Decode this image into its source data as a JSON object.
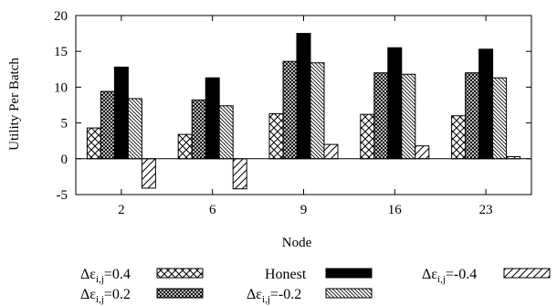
{
  "chart_data": {
    "type": "bar",
    "title": "",
    "xlabel": "Node",
    "ylabel": "Utility Per Batch",
    "ylim": [
      -5,
      20
    ],
    "yticks": [
      -5,
      0,
      5,
      10,
      15,
      20
    ],
    "grid": false,
    "legend_placement": "bottom",
    "categories": [
      "2",
      "6",
      "9",
      "16",
      "23"
    ],
    "series": [
      {
        "name": "Δε",
        "name_sub": "i,j",
        "name_tail": "=0.4",
        "pattern": "crosshatch-wide",
        "values": [
          4.3,
          3.4,
          6.3,
          6.2,
          6.0
        ]
      },
      {
        "name": "Δε",
        "name_sub": "i,j",
        "name_tail": "=0.2",
        "pattern": "crosshatch-dense",
        "values": [
          9.4,
          8.2,
          13.6,
          12.0,
          12.0
        ]
      },
      {
        "name": "Honest",
        "name_sub": "",
        "name_tail": "",
        "pattern": "solid-black",
        "values": [
          12.8,
          11.3,
          17.5,
          15.5,
          15.3
        ]
      },
      {
        "name": "Δε",
        "name_sub": "i,j",
        "name_tail": "=-0.2",
        "pattern": "hatch-dense",
        "values": [
          8.4,
          7.4,
          13.4,
          11.8,
          11.3
        ]
      },
      {
        "name": "Δε",
        "name_sub": "i,j",
        "name_tail": "=-0.4",
        "pattern": "hatch-wide",
        "values": [
          -4.1,
          -4.2,
          2.0,
          1.8,
          0.3
        ]
      }
    ]
  }
}
